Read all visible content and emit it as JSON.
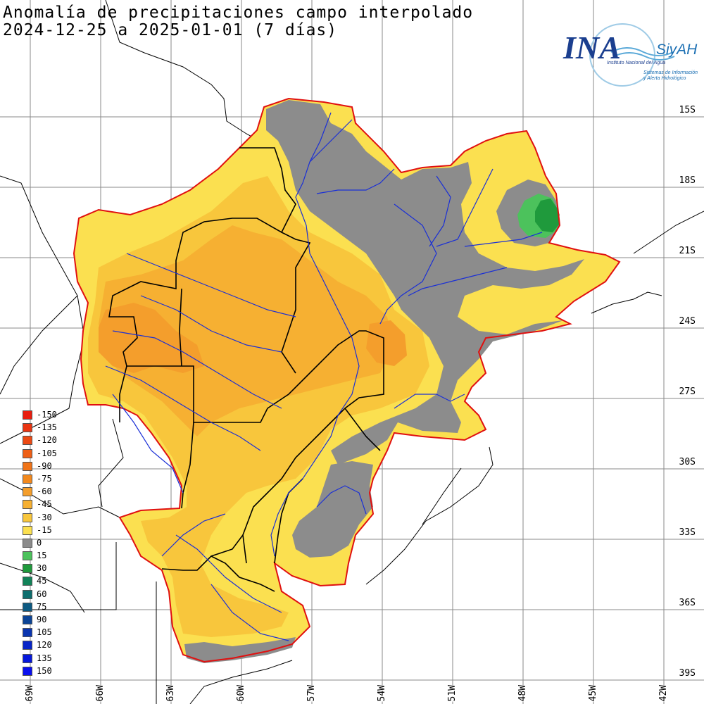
{
  "title": {
    "line1": "Anomalía de precipitaciones campo interpolado",
    "line2": "2024-12-25 a 2025-01-01 (7 días)"
  },
  "logo": {
    "brand": "INA",
    "system": "SiyAH",
    "institution": "Instituto Nacional del Agua",
    "system_desc_1": "Sistemas de Información",
    "system_desc_2": "y Alerta Hidrológico"
  },
  "latitude_labels": [
    "15S",
    "18S",
    "21S",
    "24S",
    "27S",
    "30S",
    "33S",
    "36S",
    "39S"
  ],
  "longitude_labels": [
    "69W",
    "66W",
    "63W",
    "60W",
    "57W",
    "54W",
    "51W",
    "48W",
    "45W",
    "42W"
  ],
  "legend": {
    "items": [
      {
        "label": "-150",
        "color": "#e81e10"
      },
      {
        "label": "-135",
        "color": "#ea3512"
      },
      {
        "label": "-120",
        "color": "#ec4a14"
      },
      {
        "label": "-105",
        "color": "#ee5f16"
      },
      {
        "label": "-90",
        "color": "#f07418"
      },
      {
        "label": "-75",
        "color": "#f2891e"
      },
      {
        "label": "-60",
        "color": "#f49e2c"
      },
      {
        "label": "-45",
        "color": "#f6b032"
      },
      {
        "label": "-30",
        "color": "#f8c63c"
      },
      {
        "label": "-15",
        "color": "#fbe050"
      },
      {
        "label": "0",
        "color": "#8c8c8c"
      },
      {
        "label": "15",
        "color": "#4cc25c"
      },
      {
        "label": "30",
        "color": "#1f9a3c"
      },
      {
        "label": "45",
        "color": "#128258"
      },
      {
        "label": "60",
        "color": "#0e6e6e"
      },
      {
        "label": "75",
        "color": "#0d5a82"
      },
      {
        "label": "90",
        "color": "#0c4496"
      },
      {
        "label": "105",
        "color": "#0a35b0"
      },
      {
        "label": "120",
        "color": "#0826c8"
      },
      {
        "label": "135",
        "color": "#0618dc"
      },
      {
        "label": "150",
        "color": "#0a10ee"
      }
    ]
  },
  "colors": {
    "basin_outline": "#e01010",
    "rivers": "#1a2fd6",
    "borders": "#000000",
    "graticule": "#8a8a8a"
  }
}
